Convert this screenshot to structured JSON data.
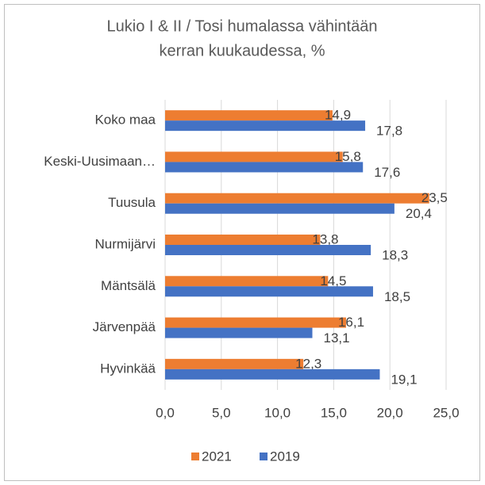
{
  "chart_data": {
    "type": "hbar",
    "title": [
      "Lukio I & II / Tosi humalassa vähintään",
      "kerran kuukaudessa, %"
    ],
    "categories": [
      "Koko maa",
      "Keski-Uusimaan…",
      "Tuusula",
      "Nurmijärvi",
      "Mäntsälä",
      "Järvenpää",
      "Hyvinkää"
    ],
    "series": [
      {
        "name": "2021",
        "color": "#ed7d31",
        "values": [
          14.9,
          15.8,
          23.5,
          13.8,
          14.5,
          16.1,
          12.3
        ],
        "value_labels": [
          "14,9",
          "15,8",
          "23,5",
          "13,8",
          "14,5",
          "16,1",
          "12,3"
        ]
      },
      {
        "name": "2019",
        "color": "#4472c4",
        "values": [
          17.8,
          17.6,
          20.4,
          18.3,
          18.5,
          13.1,
          19.1
        ],
        "value_labels": [
          "17,8",
          "17,6",
          "20,4",
          "18,3",
          "18,5",
          "13,1",
          "19,1"
        ]
      }
    ],
    "xlim": [
      0,
      25
    ],
    "xticks": [
      {
        "value": 0,
        "label": "0,0"
      },
      {
        "value": 5,
        "label": "5,0"
      },
      {
        "value": 10,
        "label": "10,0"
      },
      {
        "value": 15,
        "label": "15,0"
      },
      {
        "value": 20,
        "label": "20,0"
      },
      {
        "value": 25,
        "label": "25,0"
      }
    ],
    "grid": true,
    "legend": "bottom"
  }
}
